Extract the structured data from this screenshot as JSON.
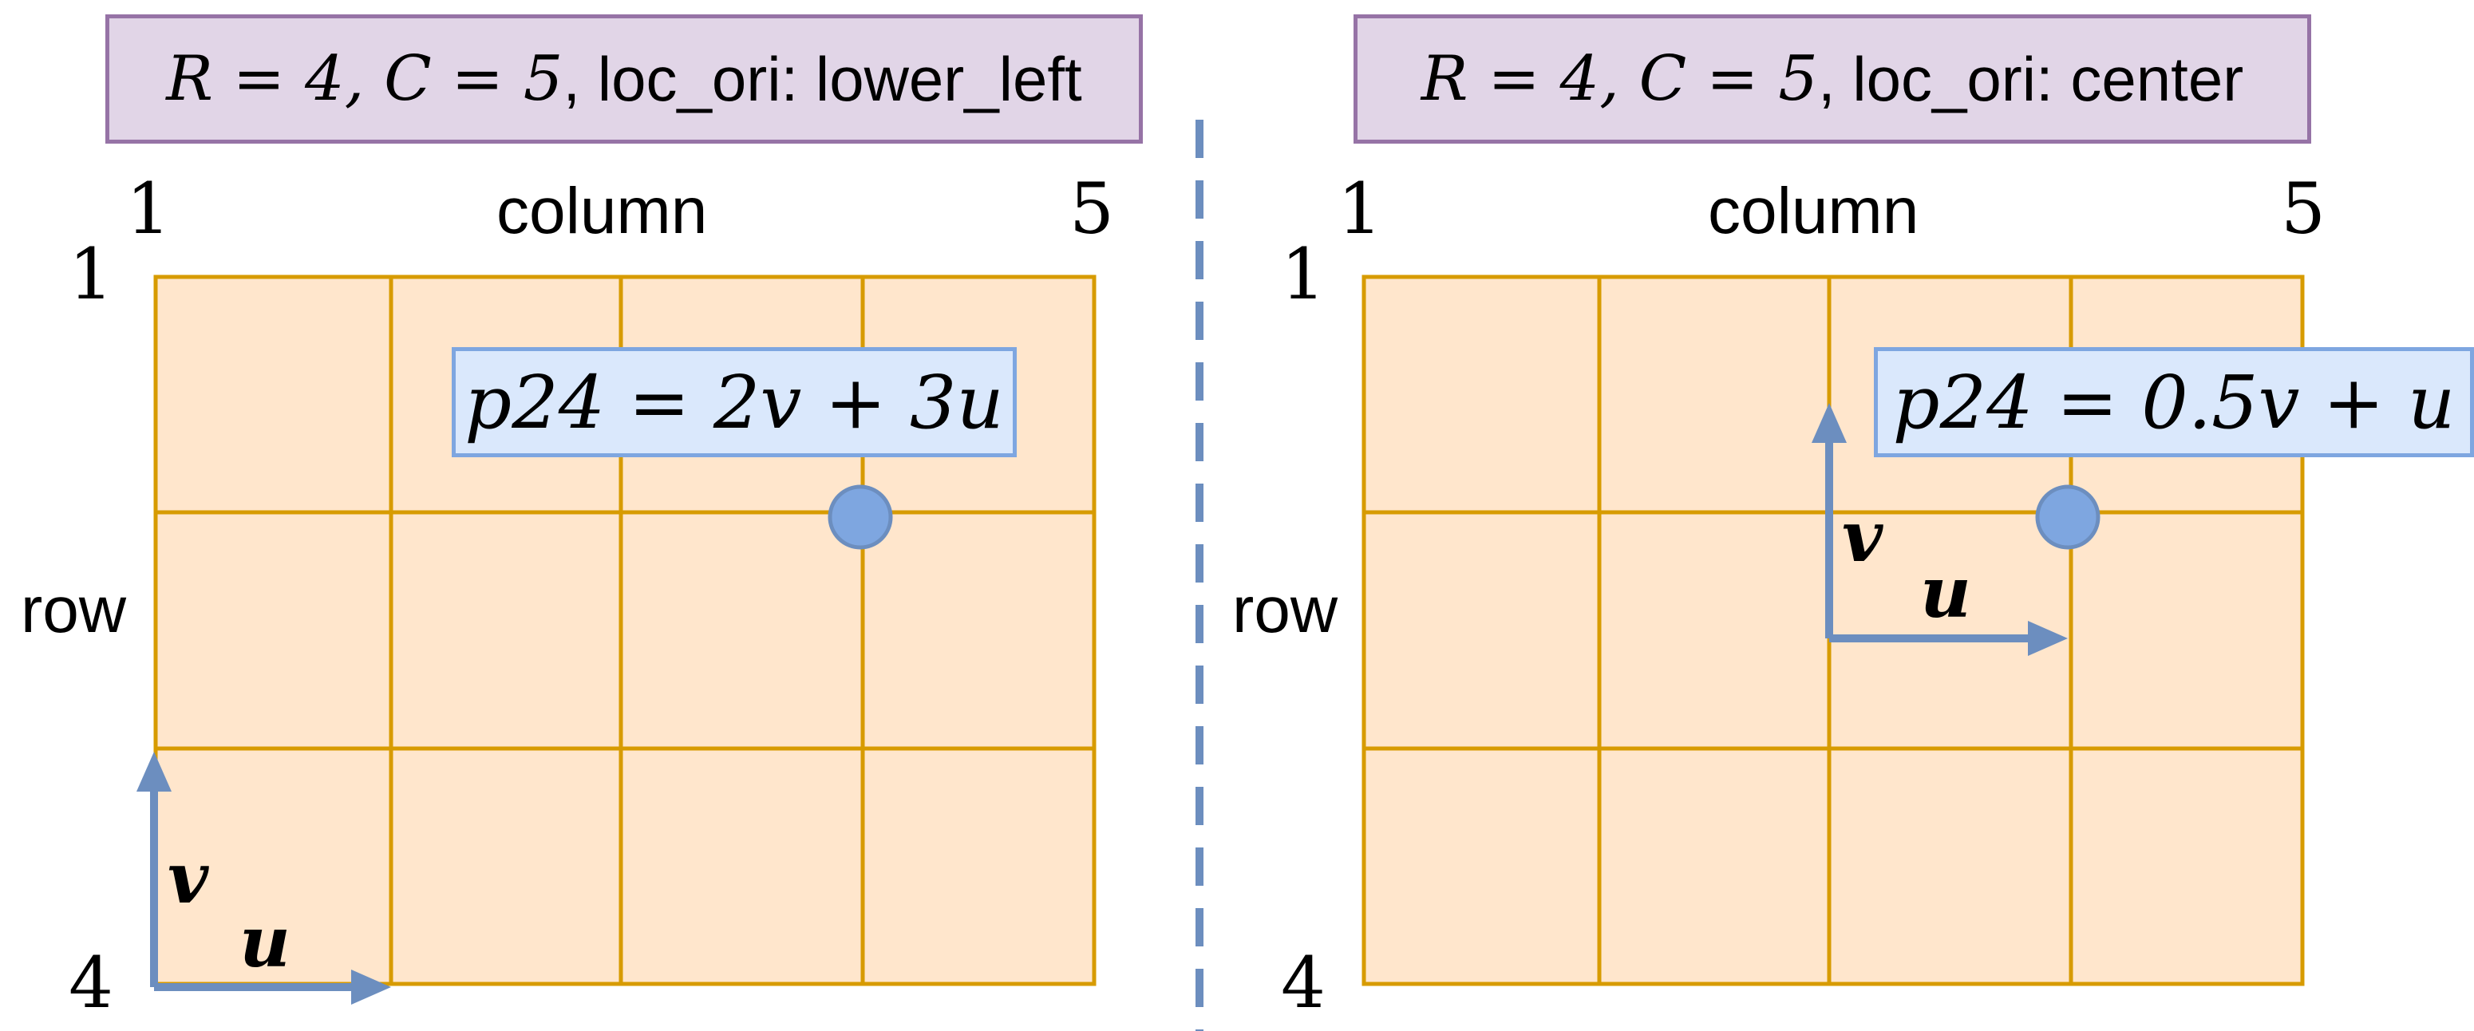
{
  "panels": [
    {
      "title_math": "R = 4, C = 5",
      "title_text": ", loc_ori: lower_left",
      "col_start": "1",
      "col_end": "5",
      "col_label": "column",
      "row_start": "1",
      "row_end": "4",
      "row_label": "row",
      "formula": "p24 = 2v + 3u",
      "vec_u": "u",
      "vec_v": "v"
    },
    {
      "title_math": "R = 4, C = 5",
      "title_text": ", loc_ori: center",
      "col_start": "1",
      "col_end": "5",
      "col_label": "column",
      "row_start": "1",
      "row_end": "4",
      "row_label": "row",
      "formula": "p24 = 0.5v + u",
      "vec_u": "u",
      "vec_v": "v"
    }
  ],
  "colors": {
    "title_fill": "#e1d5e7",
    "title_border": "#9673a6",
    "grid_fill": "#ffe6cc",
    "grid_line": "#d79b00",
    "formula_fill": "#dae8fc",
    "formula_border": "#7ea6e0",
    "arrow": "#6c8ebf",
    "point": "#7ea6e0",
    "divider": "#6c8ebf"
  }
}
